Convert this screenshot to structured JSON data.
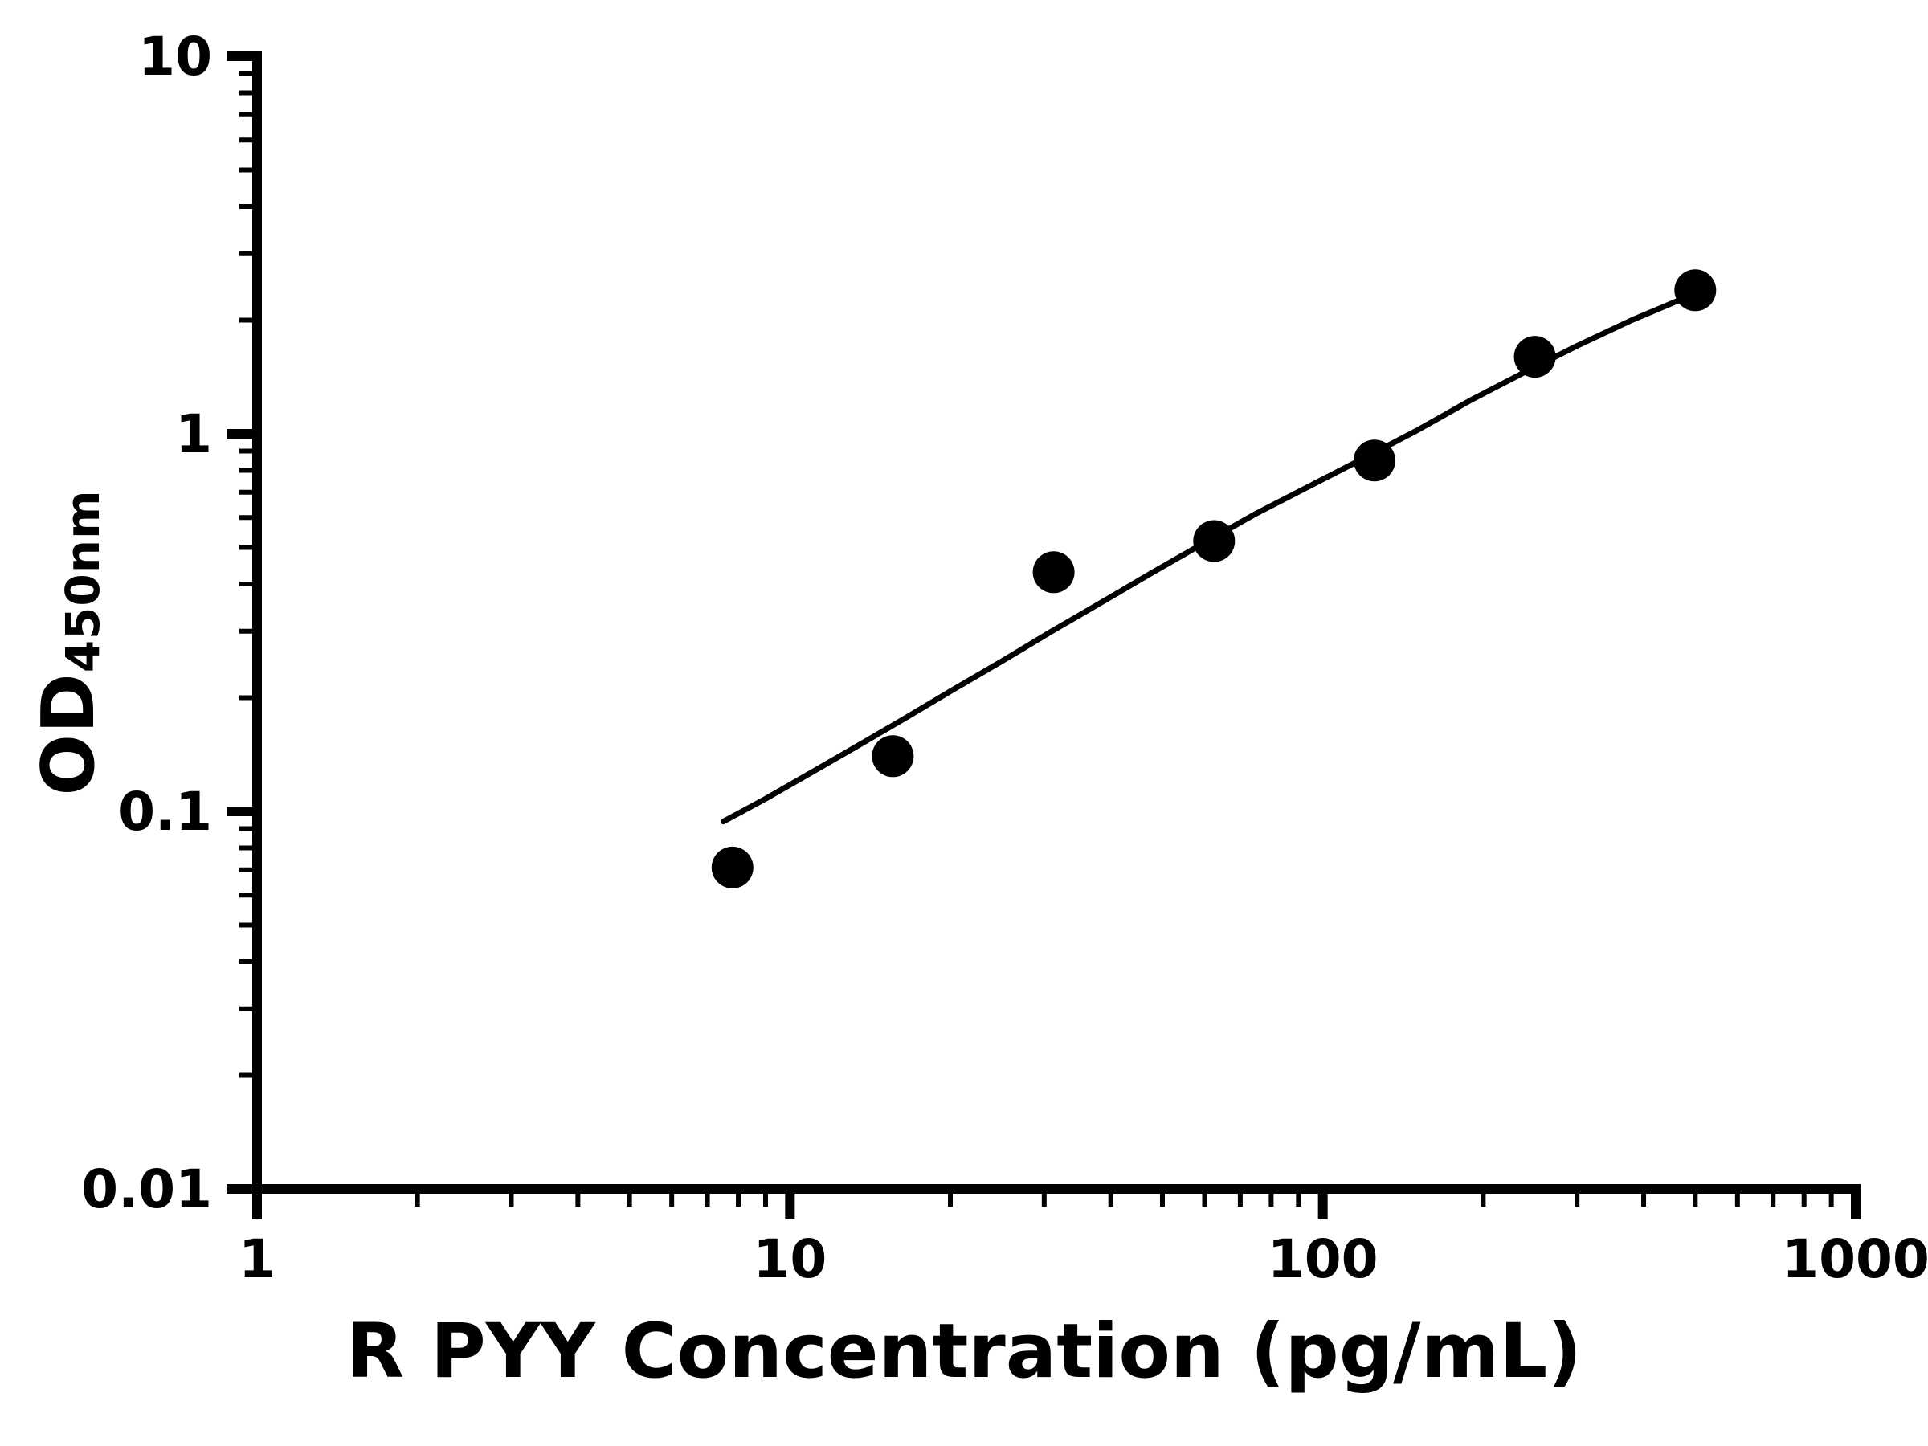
{
  "figure": {
    "background": "#ffffff"
  },
  "chart_data": {
    "type": "scatter",
    "subtype": "elisa-standard-curve",
    "title": "",
    "xlabel": "R PYY Concentration (pg/mL)",
    "ylabel_main": "OD",
    "ylabel_sub": "450nm",
    "x_scale": "log10",
    "y_scale": "log10",
    "xlim": [
      1,
      1000
    ],
    "ylim": [
      0.01,
      10
    ],
    "x_major_ticks": [
      1,
      10,
      100,
      1000
    ],
    "x_tick_labels": [
      "1",
      "10",
      "100",
      "1000"
    ],
    "y_major_ticks": [
      0.01,
      0.1,
      1,
      10
    ],
    "y_tick_labels": [
      "0.01",
      "0.1",
      "1",
      "10"
    ],
    "grid": false,
    "legend": null,
    "axis_color": "#000000",
    "line_color": "#000000",
    "marker": {
      "shape": "circle",
      "color": "#000000",
      "radius": 26
    },
    "points": [
      {
        "x": 7.8,
        "y": 0.071
      },
      {
        "x": 15.6,
        "y": 0.14
      },
      {
        "x": 31.25,
        "y": 0.43
      },
      {
        "x": 62.5,
        "y": 0.52
      },
      {
        "x": 125,
        "y": 0.85
      },
      {
        "x": 250,
        "y": 1.6
      },
      {
        "x": 500,
        "y": 2.4
      }
    ],
    "fit_curve": [
      {
        "x": 7.5,
        "y": 0.094
      },
      {
        "x": 9,
        "y": 0.108
      },
      {
        "x": 11,
        "y": 0.127
      },
      {
        "x": 13.5,
        "y": 0.15
      },
      {
        "x": 16.5,
        "y": 0.177
      },
      {
        "x": 20,
        "y": 0.208
      },
      {
        "x": 25,
        "y": 0.25
      },
      {
        "x": 31,
        "y": 0.3
      },
      {
        "x": 39,
        "y": 0.362
      },
      {
        "x": 48,
        "y": 0.43
      },
      {
        "x": 60,
        "y": 0.515
      },
      {
        "x": 75,
        "y": 0.615
      },
      {
        "x": 95,
        "y": 0.73
      },
      {
        "x": 120,
        "y": 0.865
      },
      {
        "x": 150,
        "y": 1.02
      },
      {
        "x": 190,
        "y": 1.23
      },
      {
        "x": 240,
        "y": 1.46
      },
      {
        "x": 300,
        "y": 1.71
      },
      {
        "x": 380,
        "y": 2.0
      },
      {
        "x": 460,
        "y": 2.24
      },
      {
        "x": 510,
        "y": 2.37
      }
    ]
  }
}
